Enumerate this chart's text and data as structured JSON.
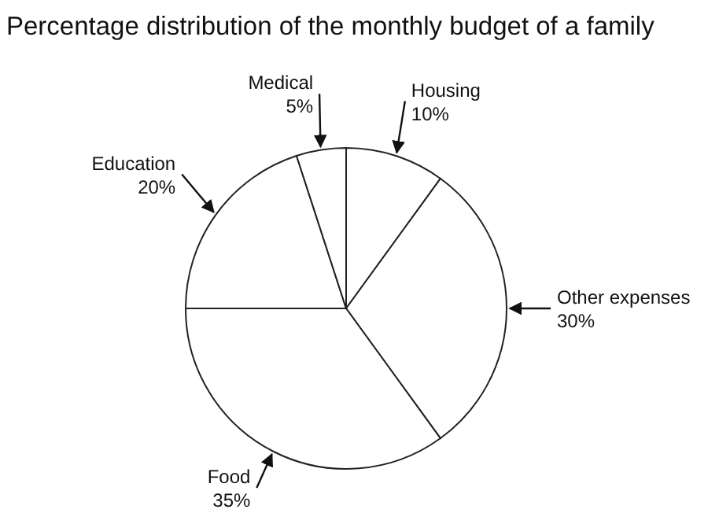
{
  "chart_data": {
    "type": "pie",
    "title": "Percentage distribution of the monthly budget of a family",
    "categories": [
      "Housing",
      "Other expenses",
      "Food",
      "Education",
      "Medical"
    ],
    "values": [
      10,
      30,
      35,
      20,
      5
    ],
    "value_labels": [
      "10%",
      "30%",
      "35%",
      "20%",
      "5%"
    ],
    "colors": [
      "#ffffff",
      "#ffffff",
      "#ffffff",
      "#ffffff",
      "#ffffff"
    ],
    "legend": false
  }
}
